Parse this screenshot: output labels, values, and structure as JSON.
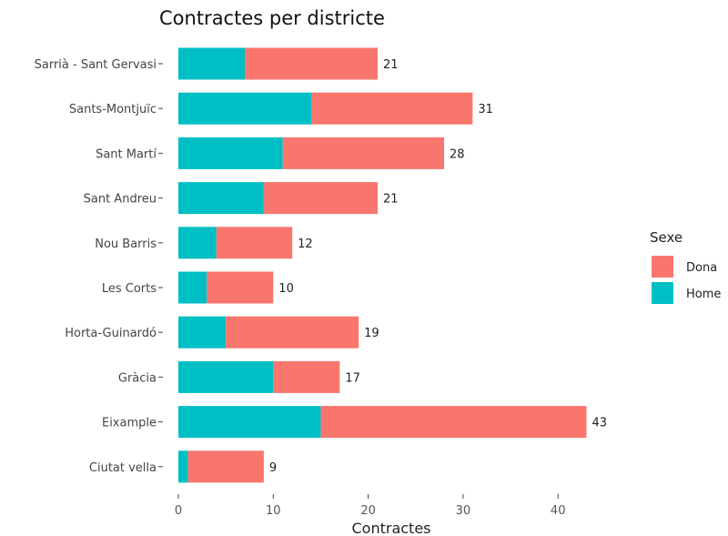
{
  "chart_data": {
    "type": "bar",
    "orientation": "horizontal",
    "stacked": true,
    "title": "Contractes per districte",
    "xlabel": "Contractes",
    "ylabel": "",
    "xlim": [
      0,
      45
    ],
    "xticks": [
      0,
      10,
      20,
      30,
      40
    ],
    "grid": false,
    "legend": {
      "title": "Sexe",
      "placement": "right"
    },
    "categories": [
      "Sarrià - Sant Gervasi",
      "Sants-Montjuïc",
      "Sant Martí",
      "Sant Andreu",
      "Nou Barris",
      "Les Corts",
      "Horta-Guinardó",
      "Gràcia",
      "Eixample",
      "Ciutat vella"
    ],
    "series": [
      {
        "name": "Home",
        "color": "#00BFC4",
        "values": [
          7,
          14,
          11,
          9,
          4,
          3,
          5,
          10,
          15,
          1
        ]
      },
      {
        "name": "Dona",
        "color": "#F8766D",
        "values": [
          14,
          17,
          17,
          12,
          8,
          7,
          14,
          7,
          28,
          8
        ]
      }
    ],
    "totals": [
      "21",
      "31",
      "28",
      "21",
      "12",
      "10",
      "19",
      "17",
      "43",
      "9"
    ],
    "legend_order": [
      "Dona",
      "Home"
    ]
  }
}
